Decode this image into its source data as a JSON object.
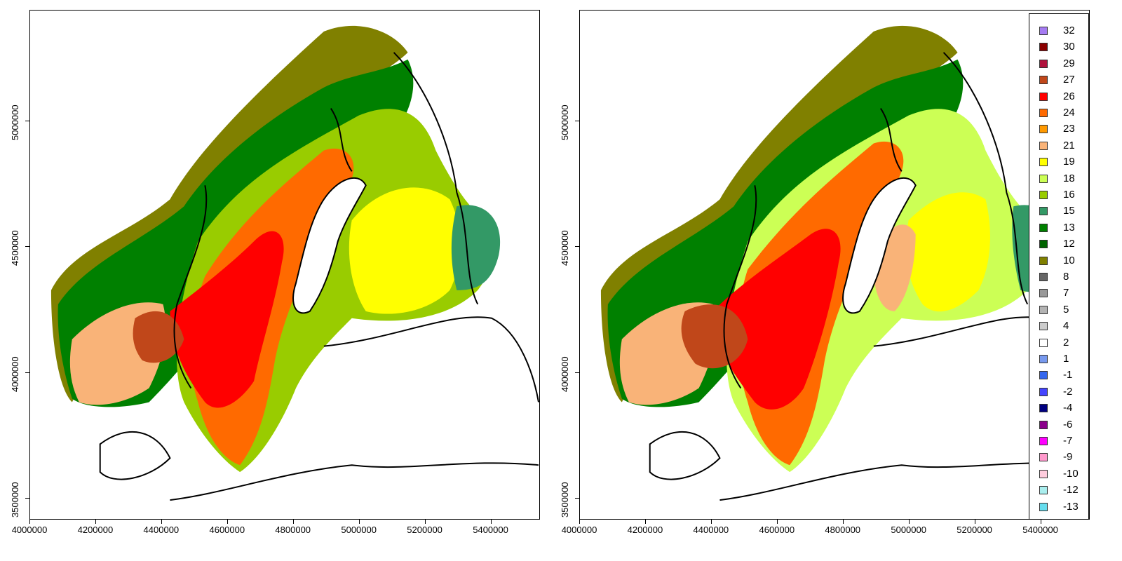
{
  "x_ticks": [
    "4000000",
    "4200000",
    "4400000",
    "4600000",
    "4800000",
    "5000000",
    "5200000",
    "5400000"
  ],
  "y_ticks": [
    "3500000",
    "4000000",
    "4500000",
    "5000000"
  ],
  "legend": [
    {
      "label": "32",
      "color": "#a57bf2"
    },
    {
      "label": "30",
      "color": "#8b0000"
    },
    {
      "label": "29",
      "color": "#b0123d"
    },
    {
      "label": "27",
      "color": "#c0471a"
    },
    {
      "label": "26",
      "color": "#ff0000"
    },
    {
      "label": "24",
      "color": "#ff6a00"
    },
    {
      "label": "23",
      "color": "#ff9900"
    },
    {
      "label": "21",
      "color": "#f9b378"
    },
    {
      "label": "19",
      "color": "#ffff00"
    },
    {
      "label": "18",
      "color": "#ccff55"
    },
    {
      "label": "16",
      "color": "#99cc00"
    },
    {
      "label": "15",
      "color": "#339966"
    },
    {
      "label": "13",
      "color": "#008000"
    },
    {
      "label": "12",
      "color": "#006400"
    },
    {
      "label": "10",
      "color": "#808000"
    },
    {
      "label": "8",
      "color": "#666666"
    },
    {
      "label": "7",
      "color": "#999999"
    },
    {
      "label": "5",
      "color": "#b3b3b3"
    },
    {
      "label": "4",
      "color": "#cccccc"
    },
    {
      "label": "2",
      "color": "#ffffff"
    },
    {
      "label": "1",
      "color": "#7799ee"
    },
    {
      "label": "-1",
      "color": "#3366ee"
    },
    {
      "label": "-2",
      "color": "#4444ff"
    },
    {
      "label": "-4",
      "color": "#000080"
    },
    {
      "label": "-6",
      "color": "#8b008b"
    },
    {
      "label": "-7",
      "color": "#ff00ff"
    },
    {
      "label": "-9",
      "color": "#ff99cc"
    },
    {
      "label": "-10",
      "color": "#ffccdd"
    },
    {
      "label": "-12",
      "color": "#aaeeee"
    },
    {
      "label": "-13",
      "color": "#66ddee"
    }
  ],
  "x_range": [
    4000000,
    5550000
  ],
  "y_range": [
    3415000,
    5440000
  ]
}
